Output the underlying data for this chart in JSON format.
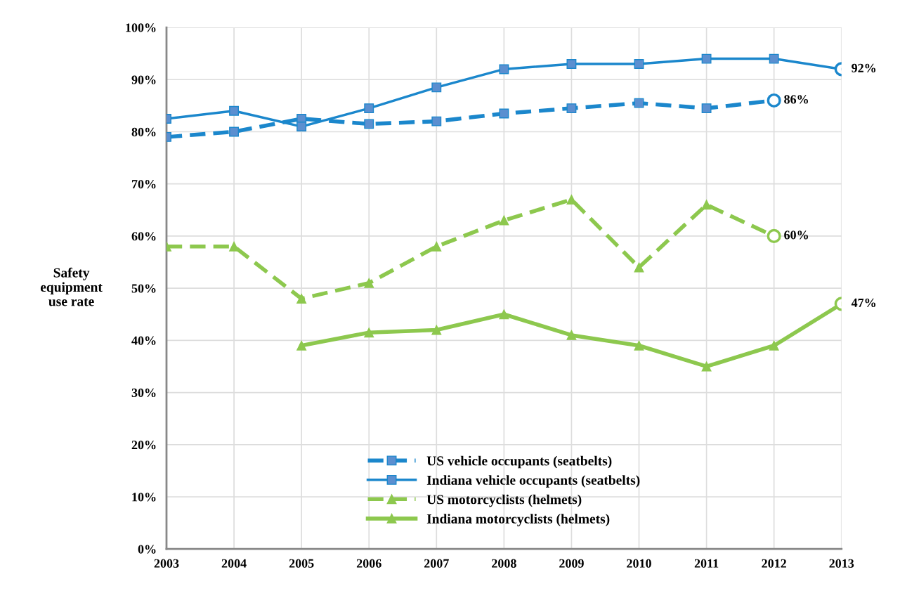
{
  "chart_data": {
    "type": "line",
    "ylabel": "Safety\nequipment\nuse rate",
    "categories": [
      "2003",
      "2004",
      "2005",
      "2006",
      "2007",
      "2008",
      "2009",
      "2010",
      "2011",
      "2012",
      "2013"
    ],
    "ylim": [
      0,
      100
    ],
    "yticks": [
      {
        "value": 0,
        "label": "0%"
      },
      {
        "value": 10,
        "label": "10%"
      },
      {
        "value": 20,
        "label": "20%"
      },
      {
        "value": 30,
        "label": "30%"
      },
      {
        "value": 40,
        "label": "40%"
      },
      {
        "value": 50,
        "label": "50%"
      },
      {
        "value": 60,
        "label": "60%"
      },
      {
        "value": 70,
        "label": "70%"
      },
      {
        "value": 80,
        "label": "80%"
      },
      {
        "value": 90,
        "label": "90%"
      },
      {
        "value": 100,
        "label": "100%"
      }
    ],
    "grid": true,
    "legend": "bottom",
    "series": [
      {
        "name": "US vehicle occupants (seatbelts)",
        "color": "#1b87cc",
        "line_style": "dashed",
        "marker": "square",
        "values": [
          79,
          80,
          82.5,
          81.5,
          82,
          83.5,
          84.5,
          85.5,
          84.5,
          86,
          null
        ],
        "value_labels": [
          null,
          null,
          null,
          null,
          null,
          null,
          null,
          null,
          null,
          "86%",
          null
        ]
      },
      {
        "name": "Indiana vehicle occupants (seatbelts)",
        "color": "#1b87cc",
        "line_style": "solid",
        "marker": "square",
        "values": [
          82.5,
          84,
          81,
          84.5,
          88.5,
          92,
          93,
          93,
          94,
          94,
          92
        ],
        "value_labels": [
          null,
          null,
          null,
          null,
          null,
          null,
          null,
          null,
          null,
          null,
          "92%"
        ]
      },
      {
        "name": "US motorcyclists (helmets)",
        "color": "#8dc84e",
        "line_style": "dashed",
        "marker": "triangle",
        "values": [
          58,
          58,
          48,
          51,
          58,
          63,
          67,
          54,
          66,
          60,
          null
        ],
        "value_labels": [
          null,
          null,
          null,
          null,
          null,
          null,
          null,
          null,
          null,
          "60%",
          null
        ]
      },
      {
        "name": "Indiana motorcyclists (helmets)",
        "color": "#8dc84e",
        "line_style": "solid",
        "marker": "triangle",
        "values": [
          null,
          null,
          39,
          41.5,
          42,
          45,
          41,
          39,
          35,
          39,
          47
        ],
        "value_labels": [
          null,
          null,
          null,
          null,
          null,
          null,
          null,
          null,
          null,
          null,
          "47%"
        ]
      }
    ]
  }
}
